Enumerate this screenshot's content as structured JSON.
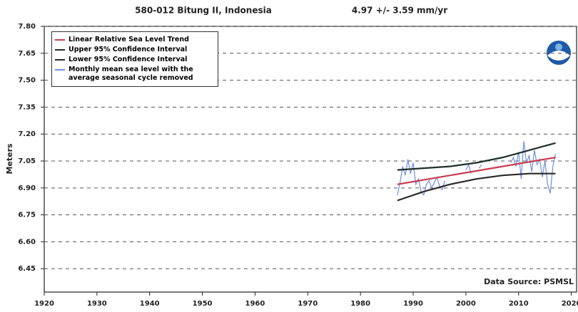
{
  "chart_data": {
    "type": "line",
    "title": "580-012 Bitung II, Indonesia",
    "subtitle": "4.97 +/-  3.59 mm/yr",
    "y_label": "Meters",
    "annotation": "Data Source: PSMSL",
    "xlim": [
      1920,
      2021
    ],
    "xticks": [
      1920,
      1930,
      1940,
      1950,
      1960,
      1970,
      1980,
      1990,
      2000,
      2010,
      2020
    ],
    "ylim": [
      6.32,
      7.8
    ],
    "yticks": [
      {
        "value": 7.8,
        "label": "7.80"
      },
      7.65,
      {
        "value": 7.5,
        "label": "7.50"
      },
      7.35,
      {
        "value": 7.2,
        "label": "7.20"
      },
      7.05,
      {
        "value": 6.9,
        "label": "6.90"
      },
      6.75,
      {
        "value": 6.6,
        "label": "6.60"
      },
      6.45
    ],
    "grid": true,
    "legend": "top-left",
    "series": [
      {
        "name": "Linear Relative Sea Level Trend",
        "color": "#c83a4e",
        "x": [
          1987,
          2017
        ],
        "values": [
          6.92,
          7.07
        ]
      },
      {
        "name": "Upper 95% Confidence Interval",
        "color": "#1f2f2a",
        "x": [
          1987,
          1992,
          1997,
          2002,
          2007,
          2012,
          2017
        ],
        "values": [
          7.0,
          7.01,
          7.02,
          7.04,
          7.07,
          7.11,
          7.15
        ]
      },
      {
        "name": "Lower 95% Confidence Interval",
        "color": "#2a2a2a",
        "x": [
          1987,
          1992,
          1997,
          2002,
          2007,
          2012,
          2017
        ],
        "values": [
          6.83,
          6.88,
          6.92,
          6.95,
          6.97,
          6.98,
          6.98
        ]
      },
      {
        "name": "Monthly mean sea level with the average seasonal cycle removed",
        "color": "#6f8fe0",
        "x": [
          1987,
          1987.5,
          1988,
          1988.5,
          1989,
          1989.5,
          1990,
          1990.5,
          1991,
          1991.5,
          1992,
          1992.5,
          1993,
          1993.5,
          1994,
          1994.5,
          1995,
          1995.5,
          1996,
          1996.5,
          2000,
          2000.5,
          2001,
          2001.5,
          2002.5,
          2003,
          2003.5,
          2008.5,
          2009,
          2009.5,
          2010,
          2010.5,
          2011,
          2011.5,
          2012,
          2012.5,
          2013,
          2013.5,
          2014,
          2014.5,
          2015,
          2015.5,
          2016,
          2016.5,
          2017
        ],
        "values": [
          6.86,
          6.93,
          7.02,
          6.97,
          7.06,
          6.98,
          7.04,
          6.92,
          6.95,
          6.88,
          6.86,
          6.92,
          6.94,
          6.9,
          6.93,
          6.96,
          6.91,
          6.89,
          6.94,
          null,
          7.0,
          7.03,
          6.98,
          null,
          7.01,
          7.03,
          null,
          7.04,
          7.07,
          7.02,
          7.1,
          6.95,
          7.16,
          7.04,
          7.08,
          6.99,
          7.11,
          7.03,
          7.06,
          6.96,
          7.05,
          6.92,
          6.87,
          7.02,
          7.09
        ]
      }
    ]
  }
}
